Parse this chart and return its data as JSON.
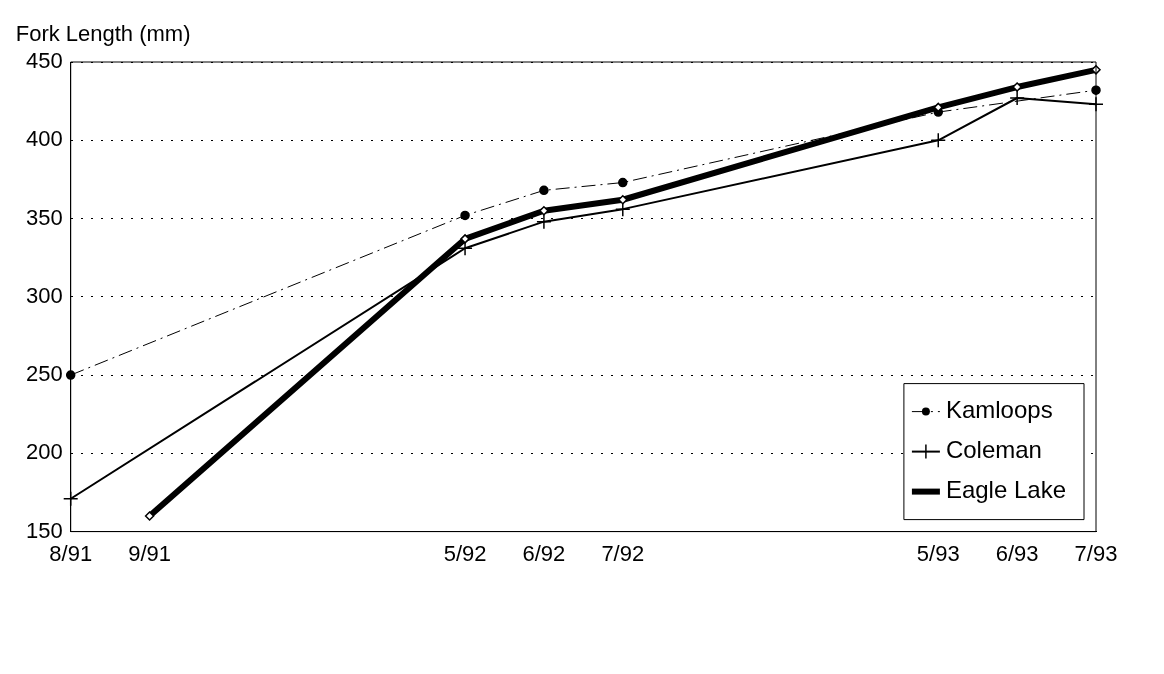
{
  "chart_data": {
    "type": "line",
    "ylabel": "Fork Length (mm)",
    "categories": [
      "8/91",
      "9/91",
      null,
      null,
      null,
      "5/92",
      "6/92",
      "7/92",
      null,
      null,
      null,
      "5/93",
      "6/93",
      "7/93"
    ],
    "series": [
      {
        "name": "Kamloops",
        "color": "#000000",
        "marker": "circle",
        "line_style": "dashed",
        "values": [
          250,
          null,
          null,
          null,
          null,
          352,
          368,
          373,
          null,
          null,
          null,
          418,
          null,
          432
        ]
      },
      {
        "name": "Coleman",
        "color": "#000000",
        "marker": "cross",
        "line_style": "solid",
        "values": [
          171,
          null,
          null,
          null,
          null,
          331,
          348,
          356,
          null,
          null,
          null,
          400,
          427,
          423
        ]
      },
      {
        "name": "Eagle Lake",
        "color": "#000000",
        "marker": "diamond",
        "line_style": "solid",
        "values": [
          null,
          160,
          null,
          null,
          null,
          337,
          355,
          362,
          null,
          null,
          null,
          421,
          434,
          445
        ]
      }
    ],
    "ylim": [
      150,
      450
    ],
    "yticks": [
      150,
      200,
      250,
      300,
      350,
      400,
      450
    ],
    "grid": "y",
    "legend": "bottom right"
  }
}
